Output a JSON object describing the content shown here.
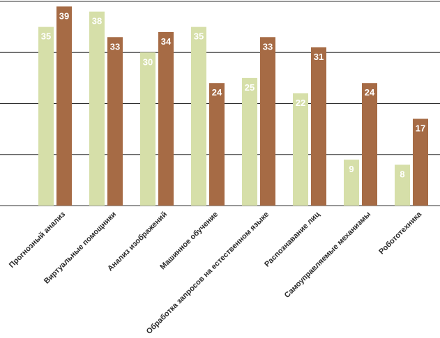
{
  "chart_data": {
    "type": "bar",
    "categories": [
      "Прогнозный анализ",
      "Виртуальные помощники",
      "Анализ изображений",
      "Машинное обучение",
      "Обработка запросов на естественном языке",
      "Распознавание лиц",
      "Самоуправляемые механизмы",
      "Робототехника"
    ],
    "series": [
      {
        "values": [
          35,
          38,
          30,
          35,
          25,
          22,
          9,
          8
        ],
        "color": "#d6dfa9"
      },
      {
        "values": [
          39,
          33,
          34,
          24,
          33,
          31,
          24,
          17
        ],
        "color": "#a66b45"
      }
    ],
    "ylim": [
      0,
      40
    ],
    "y_gridlines": [
      0,
      10,
      20,
      30,
      40
    ],
    "data_labels": true,
    "legend": "none"
  }
}
